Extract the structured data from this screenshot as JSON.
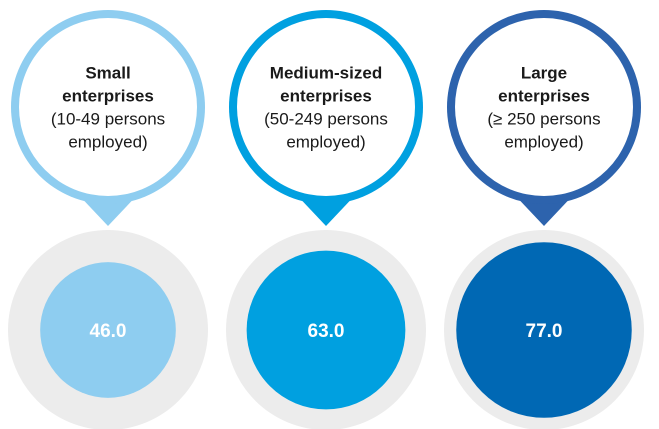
{
  "chart_data": {
    "type": "bubble",
    "scale_max": 100,
    "categories": [
      {
        "title_lines": [
          "Small",
          "enterprises"
        ],
        "detail_lines": [
          "(10-49 persons",
          "employed)"
        ],
        "value": 46.0,
        "value_label": "46.0",
        "color": "#8ecdf0"
      },
      {
        "title_lines": [
          "Medium-sized",
          "enterprises"
        ],
        "detail_lines": [
          "(50-249 persons",
          "employed)"
        ],
        "value": 63.0,
        "value_label": "63.0",
        "color": "#00a0e0"
      },
      {
        "title_lines": [
          "Large",
          "enterprises"
        ],
        "detail_lines": [
          "(≥ 250 persons",
          "employed)"
        ],
        "value": 77.0,
        "value_label": "77.0",
        "color": "#0068b4"
      }
    ],
    "pin_colors": [
      "#8ecdf0",
      "#00a0e0",
      "#2d63ad"
    ],
    "background_circle_color": "#ececec"
  }
}
